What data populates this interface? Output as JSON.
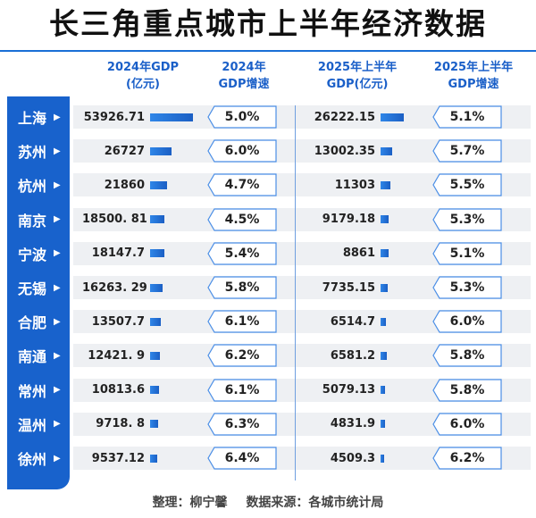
{
  "title": "长三角重点城市上半年经济数据",
  "headers": {
    "gdp_2024": "2024年GDP\n(亿元)",
    "rate_2024": "2024年\nGDP增速",
    "gdp_2025h1": "2025年上半年\nGDP(亿元)",
    "rate_2025h1": "2025年上半年\nGDP增速"
  },
  "accent_color": "#1862cc",
  "chart_data": {
    "type": "table",
    "columns": [
      "2024年GDP(亿元)",
      "2024年GDP增速",
      "2025年上半年GDP(亿元)",
      "2025年上半年GDP增速"
    ],
    "rows": [
      {
        "city": "上海",
        "gdp_2024": "53926.71",
        "rate_2024": "5.0%",
        "gdp_2025h1": "26222.15",
        "rate_2025h1": "5.1%"
      },
      {
        "city": "苏州",
        "gdp_2024": "26727",
        "rate_2024": "6.0%",
        "gdp_2025h1": "13002.35",
        "rate_2025h1": "5.7%"
      },
      {
        "city": "杭州",
        "gdp_2024": "21860",
        "rate_2024": "4.7%",
        "gdp_2025h1": "11303",
        "rate_2025h1": "5.5%"
      },
      {
        "city": "南京",
        "gdp_2024": "18500. 81",
        "rate_2024": "4.5%",
        "gdp_2025h1": "9179.18",
        "rate_2025h1": "5.3%"
      },
      {
        "city": "宁波",
        "gdp_2024": "18147.7",
        "rate_2024": "5.4%",
        "gdp_2025h1": "8861",
        "rate_2025h1": "5.1%"
      },
      {
        "city": "无锡",
        "gdp_2024": "16263. 29",
        "rate_2024": "5.8%",
        "gdp_2025h1": "7735.15",
        "rate_2025h1": "5.3%"
      },
      {
        "city": "合肥",
        "gdp_2024": "13507.7",
        "rate_2024": "6.1%",
        "gdp_2025h1": "6514.7",
        "rate_2025h1": "6.0%"
      },
      {
        "city": "南通",
        "gdp_2024": "12421. 9",
        "rate_2024": "6.2%",
        "gdp_2025h1": "6581.2",
        "rate_2025h1": "5.8%"
      },
      {
        "city": "常州",
        "gdp_2024": "10813.6",
        "rate_2024": "6.1%",
        "gdp_2025h1": "5079.13",
        "rate_2025h1": "5.8%"
      },
      {
        "city": "温州",
        "gdp_2024": "9718. 8",
        "rate_2024": "6.3%",
        "gdp_2025h1": "4831.9",
        "rate_2025h1": "6.0%"
      },
      {
        "city": "徐州",
        "gdp_2024": "9537.12",
        "rate_2024": "6.4%",
        "gdp_2025h1": "4509.3",
        "rate_2025h1": "6.2%"
      }
    ]
  },
  "footer": {
    "compiler": "整理：柳宁馨",
    "source": "数据来源：各城市统计局"
  }
}
